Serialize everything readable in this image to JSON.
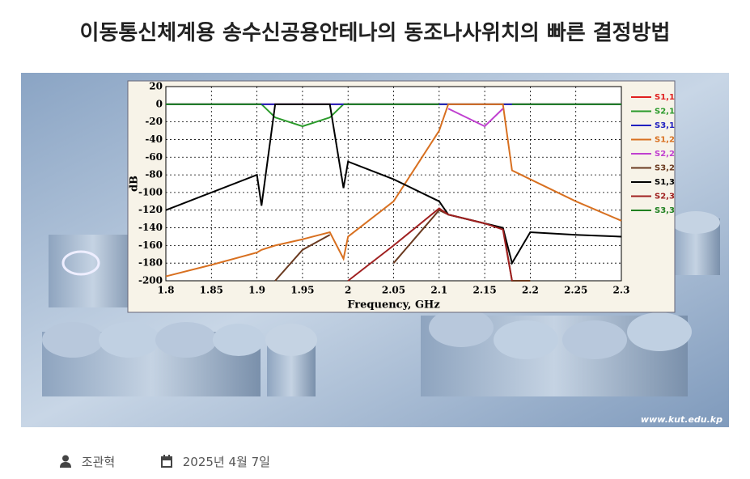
{
  "header": {
    "title": "이동통신체계용 송수신공용안테나의 동조나사위치의 빠른 결정방법"
  },
  "image": {
    "watermark": "www.kut.edu.kp"
  },
  "chart_data": {
    "type": "line",
    "xlabel": "Frequency, GHz",
    "ylabel": "dB",
    "xlim": [
      1.8,
      2.3
    ],
    "xticks": [
      1.8,
      1.85,
      1.9,
      1.95,
      2,
      2.05,
      2.1,
      2.15,
      2.2,
      2.25,
      2.3
    ],
    "ylim": [
      -200,
      20
    ],
    "yticks": [
      20,
      0,
      -20,
      -40,
      -60,
      -80,
      -100,
      -120,
      -140,
      -160,
      -180,
      -200
    ],
    "grid": true,
    "x": [
      1.8,
      1.85,
      1.9,
      1.905,
      1.92,
      1.95,
      1.98,
      1.995,
      2.0,
      2.05,
      2.1,
      2.11,
      2.15,
      2.17,
      2.18,
      2.2,
      2.25,
      2.3
    ],
    "series": [
      {
        "name": "S1,1",
        "color": "#e02020",
        "values": [
          0,
          0,
          0,
          0,
          0,
          0,
          0,
          0,
          0,
          0,
          0,
          0,
          0,
          0,
          0,
          0,
          0,
          0
        ]
      },
      {
        "name": "S2,1",
        "color": "#2a9a2a",
        "values": [
          0,
          0,
          0,
          0,
          -15,
          -25,
          -15,
          0,
          0,
          0,
          0,
          0,
          0,
          0,
          0,
          0,
          0,
          0
        ]
      },
      {
        "name": "S3,1",
        "color": "#2020c0",
        "values": [
          0,
          0,
          0,
          0,
          0,
          0,
          0,
          0,
          0,
          0,
          0,
          0,
          0,
          0,
          0,
          0,
          0,
          0
        ]
      },
      {
        "name": "S1,2",
        "color": "#d87020",
        "values": [
          -195,
          -182,
          -168,
          -165,
          -160,
          -153,
          -145,
          -175,
          -150,
          -110,
          -30,
          0,
          0,
          0,
          -75,
          -85,
          -110,
          -132
        ]
      },
      {
        "name": "S2,2",
        "color": "#c040d0",
        "values": [
          null,
          null,
          null,
          null,
          null,
          null,
          null,
          null,
          null,
          null,
          null,
          -5,
          -25,
          -5,
          null,
          null,
          null,
          null
        ]
      },
      {
        "name": "S3,2",
        "color": "#6a3a20",
        "values": [
          null,
          null,
          null,
          null,
          -200,
          -165,
          -148,
          null,
          null,
          -180,
          -120,
          -125,
          -135,
          -140,
          -200,
          -200,
          null,
          null
        ]
      },
      {
        "name": "S1,3",
        "color": "#000000",
        "values": [
          -120,
          -100,
          -80,
          -115,
          0,
          0,
          0,
          -95,
          -65,
          -85,
          -110,
          -125,
          -135,
          -140,
          -180,
          -145,
          -148,
          -150
        ]
      },
      {
        "name": "S2,3",
        "color": "#a02020",
        "values": [
          null,
          null,
          null,
          null,
          null,
          null,
          null,
          null,
          -200,
          -160,
          -118,
          -125,
          -135,
          -142,
          -200,
          null,
          null,
          null
        ]
      },
      {
        "name": "S3,3",
        "color": "#208020",
        "values": [
          0,
          0,
          0,
          0,
          null,
          null,
          null,
          0,
          0,
          0,
          0,
          null,
          null,
          null,
          0,
          0,
          0,
          0
        ]
      }
    ]
  },
  "meta": {
    "author": "조관혁",
    "date": "2025년 4월 7일"
  }
}
